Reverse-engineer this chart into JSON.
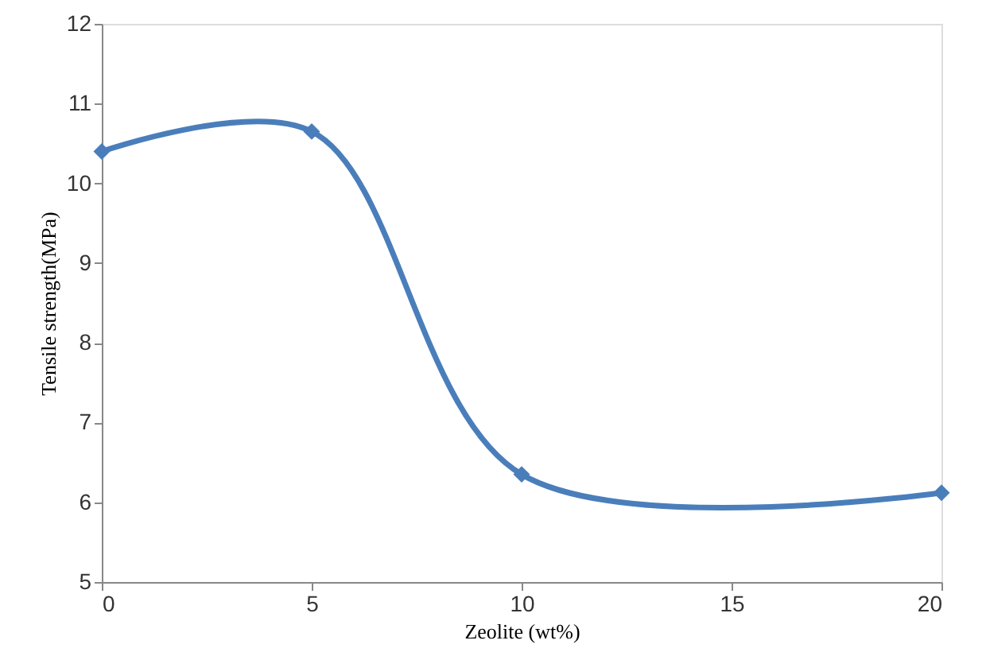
{
  "chart_data": {
    "type": "line",
    "xlabel": "Zeolite (wt%)",
    "ylabel": "Tensile strength(MPa)",
    "x": [
      0,
      5,
      10,
      20
    ],
    "series": [
      {
        "color": "#4a7ebb",
        "values": [
          10.4,
          10.65,
          6.35,
          6.12
        ]
      }
    ],
    "xlim": [
      0,
      20
    ],
    "xticks": [
      0,
      5,
      10,
      15,
      20
    ],
    "ylim": [
      5,
      12
    ],
    "yticks": [
      5,
      6,
      7,
      8,
      9,
      10,
      11,
      12
    ],
    "grid": false,
    "legend": false,
    "marker": "diamond",
    "line_style": "solid"
  }
}
